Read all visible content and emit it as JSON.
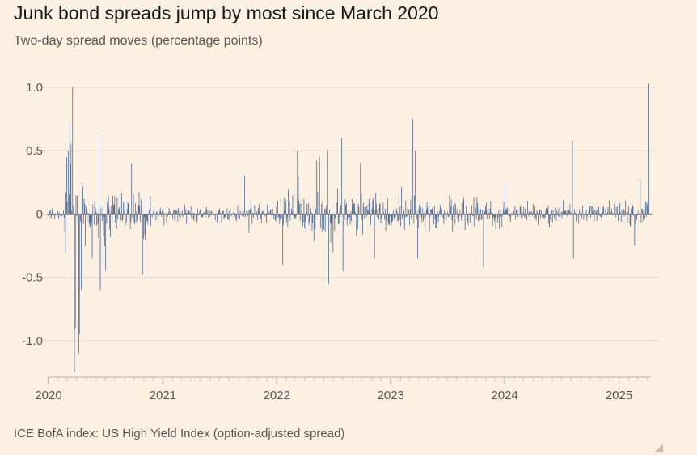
{
  "title": "Junk bond spreads jump by most since March 2020",
  "subtitle": "Two-day spread moves (percentage points)",
  "source": "ICE BofA index: US High Yield Index (option-adjusted spread)",
  "colors": {
    "background": "#fcf0e3",
    "bars": "#4f6b96",
    "gridline": "#e9dccd",
    "zeroline": "#8c8580",
    "axis_text": "#5b5552"
  },
  "chart_data": {
    "type": "bar",
    "ylim": [
      -1.25,
      1.05
    ],
    "y_ticks": [
      {
        "value": 1.0,
        "label": "1.0"
      },
      {
        "value": 0.5,
        "label": "0.5"
      },
      {
        "value": 0,
        "label": "0"
      },
      {
        "value": -0.5,
        "label": "-0.5"
      },
      {
        "value": -1.0,
        "label": "-1.0"
      }
    ],
    "x_ticks": [
      {
        "year": 2020,
        "label": "2020"
      },
      {
        "year": 2021,
        "label": "2021"
      },
      {
        "year": 2022,
        "label": "2022"
      },
      {
        "year": 2023,
        "label": "2023"
      },
      {
        "year": 2024,
        "label": "2024"
      },
      {
        "year": 2025,
        "label": "2025"
      }
    ],
    "xlim": [
      "2020-01-01",
      "2025-04-08"
    ],
    "bar_interval_days": 2,
    "highlights": [
      {
        "date": "2020-02-28",
        "value": 0.45
      },
      {
        "date": "2020-03-04",
        "value": 0.5
      },
      {
        "date": "2020-03-09",
        "value": 0.72
      },
      {
        "date": "2020-03-13",
        "value": 0.55
      },
      {
        "date": "2020-03-18",
        "value": 1.0
      },
      {
        "date": "2020-03-24",
        "value": -1.25
      },
      {
        "date": "2020-03-27",
        "value": -0.9
      },
      {
        "date": "2020-04-07",
        "value": -1.1
      },
      {
        "date": "2020-04-09",
        "value": -0.95
      },
      {
        "date": "2020-04-15",
        "value": -0.6
      },
      {
        "date": "2020-05-20",
        "value": -0.35
      },
      {
        "date": "2020-06-11",
        "value": 0.65
      },
      {
        "date": "2020-06-15",
        "value": -0.6
      },
      {
        "date": "2020-07-02",
        "value": -0.45
      },
      {
        "date": "2020-09-23",
        "value": 0.4
      },
      {
        "date": "2020-10-28",
        "value": -0.48
      },
      {
        "date": "2021-09-20",
        "value": 0.3
      },
      {
        "date": "2022-01-20",
        "value": -0.4
      },
      {
        "date": "2022-03-08",
        "value": 0.5
      },
      {
        "date": "2022-05-09",
        "value": 0.42
      },
      {
        "date": "2022-05-18",
        "value": 0.45
      },
      {
        "date": "2022-06-13",
        "value": 0.5
      },
      {
        "date": "2022-06-16",
        "value": -0.55
      },
      {
        "date": "2022-06-30",
        "value": -0.3
      },
      {
        "date": "2022-07-28",
        "value": 0.6
      },
      {
        "date": "2022-08-01",
        "value": -0.45
      },
      {
        "date": "2022-09-26",
        "value": 0.4
      },
      {
        "date": "2022-11-10",
        "value": -0.35
      },
      {
        "date": "2023-03-13",
        "value": 0.75
      },
      {
        "date": "2023-03-20",
        "value": 0.5
      },
      {
        "date": "2023-03-28",
        "value": -0.35
      },
      {
        "date": "2023-10-25",
        "value": -0.42
      },
      {
        "date": "2024-01-02",
        "value": 0.25
      },
      {
        "date": "2024-08-05",
        "value": 0.58
      },
      {
        "date": "2024-08-08",
        "value": -0.35
      },
      {
        "date": "2025-02-20",
        "value": -0.25
      },
      {
        "date": "2025-03-10",
        "value": 0.28
      },
      {
        "date": "2025-04-04",
        "value": 0.5
      },
      {
        "date": "2025-04-07",
        "value": 1.03
      }
    ],
    "volatility_profile": [
      {
        "from": "2020-01-01",
        "to": "2020-02-20",
        "amplitude": 0.08
      },
      {
        "from": "2020-02-20",
        "to": "2020-05-01",
        "amplitude": 0.55
      },
      {
        "from": "2020-05-01",
        "to": "2020-11-30",
        "amplitude": 0.28
      },
      {
        "from": "2020-11-30",
        "to": "2021-08-01",
        "amplitude": 0.09
      },
      {
        "from": "2021-08-01",
        "to": "2021-12-31",
        "amplitude": 0.12
      },
      {
        "from": "2021-12-31",
        "to": "2023-01-01",
        "amplitude": 0.26
      },
      {
        "from": "2023-01-01",
        "to": "2023-12-31",
        "amplitude": 0.18
      },
      {
        "from": "2023-12-31",
        "to": "2024-12-31",
        "amplitude": 0.1
      },
      {
        "from": "2024-12-31",
        "to": "2025-04-08",
        "amplitude": 0.14
      }
    ]
  }
}
